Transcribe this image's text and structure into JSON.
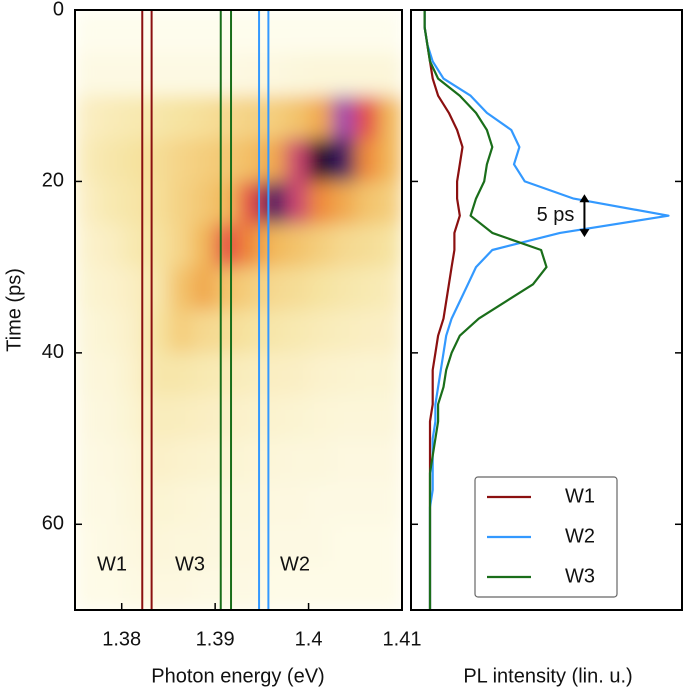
{
  "chart_data": [
    {
      "type": "heatmap",
      "xlabel": "Photon energy (eV)",
      "ylabel": "Time (ps)",
      "xlim": [
        1.375,
        1.41
      ],
      "ylim": [
        0,
        70
      ],
      "y_inverted": true,
      "xticks": [
        1.38,
        1.39,
        1.4,
        1.41
      ],
      "yticks": [
        0,
        20,
        40,
        60
      ],
      "x_bins": [
        1.375,
        1.3775,
        1.38,
        1.3825,
        1.385,
        1.3875,
        1.39,
        1.3925,
        1.395,
        1.3975,
        1.4,
        1.4025,
        1.405,
        1.4075,
        1.41
      ],
      "y_bins": [
        0,
        5,
        10,
        15,
        20,
        25,
        30,
        35,
        40,
        45,
        50,
        55,
        60,
        65,
        70
      ],
      "z": [
        [
          0.02,
          0.02,
          0.02,
          0.02,
          0.02,
          0.02,
          0.02,
          0.02,
          0.02,
          0.02,
          0.02,
          0.02,
          0.02,
          0.02
        ],
        [
          0.05,
          0.05,
          0.05,
          0.05,
          0.05,
          0.05,
          0.05,
          0.06,
          0.06,
          0.07,
          0.08,
          0.08,
          0.08,
          0.08
        ],
        [
          0.15,
          0.18,
          0.2,
          0.22,
          0.25,
          0.27,
          0.3,
          0.33,
          0.35,
          0.4,
          0.5,
          0.8,
          0.7,
          0.45
        ],
        [
          0.18,
          0.22,
          0.25,
          0.28,
          0.32,
          0.35,
          0.38,
          0.42,
          0.5,
          0.75,
          0.95,
          0.9,
          0.6,
          0.45
        ],
        [
          0.15,
          0.2,
          0.23,
          0.27,
          0.33,
          0.38,
          0.45,
          0.7,
          0.9,
          0.75,
          0.6,
          0.5,
          0.4,
          0.35
        ],
        [
          0.12,
          0.15,
          0.2,
          0.25,
          0.32,
          0.45,
          0.7,
          0.6,
          0.45,
          0.4,
          0.35,
          0.3,
          0.28,
          0.25
        ],
        [
          0.1,
          0.12,
          0.15,
          0.22,
          0.4,
          0.5,
          0.4,
          0.35,
          0.3,
          0.28,
          0.25,
          0.22,
          0.2,
          0.18
        ],
        [
          0.08,
          0.1,
          0.13,
          0.25,
          0.35,
          0.3,
          0.28,
          0.25,
          0.22,
          0.2,
          0.18,
          0.16,
          0.15,
          0.14
        ],
        [
          0.07,
          0.08,
          0.12,
          0.22,
          0.22,
          0.2,
          0.18,
          0.16,
          0.15,
          0.14,
          0.12,
          0.11,
          0.1,
          0.1
        ],
        [
          0.06,
          0.07,
          0.1,
          0.17,
          0.16,
          0.15,
          0.13,
          0.12,
          0.11,
          0.1,
          0.09,
          0.08,
          0.08,
          0.08
        ],
        [
          0.05,
          0.06,
          0.08,
          0.13,
          0.12,
          0.11,
          0.1,
          0.09,
          0.08,
          0.07,
          0.07,
          0.06,
          0.06,
          0.06
        ],
        [
          0.05,
          0.05,
          0.07,
          0.1,
          0.09,
          0.08,
          0.07,
          0.07,
          0.06,
          0.06,
          0.05,
          0.05,
          0.05,
          0.05
        ],
        [
          0.04,
          0.05,
          0.06,
          0.08,
          0.07,
          0.07,
          0.06,
          0.06,
          0.05,
          0.05,
          0.05,
          0.04,
          0.04,
          0.04
        ],
        [
          0.04,
          0.04,
          0.05,
          0.06,
          0.06,
          0.05,
          0.05,
          0.05,
          0.04,
          0.04,
          0.04,
          0.04,
          0.04,
          0.04
        ]
      ],
      "colormap": [
        [
          0,
          "#fffff4"
        ],
        [
          0.25,
          "#f6e3a0"
        ],
        [
          0.45,
          "#f2b85a"
        ],
        [
          0.6,
          "#ef8a3a"
        ],
        [
          0.72,
          "#e2454a"
        ],
        [
          0.83,
          "#8a4ad0"
        ],
        [
          0.92,
          "#2a1040"
        ],
        [
          1,
          "#000000"
        ]
      ],
      "windows": [
        {
          "name": "W1",
          "color": "#8b1010",
          "edges": [
            1.3822,
            1.3832
          ]
        },
        {
          "name": "W3",
          "color": "#1a6e1a",
          "edges": [
            1.3906,
            1.3917
          ]
        },
        {
          "name": "W2",
          "color": "#3399ff",
          "edges": [
            1.3947,
            1.3957
          ]
        }
      ]
    },
    {
      "type": "line",
      "orientation": "time-vertical",
      "xlabel": "PL intensity (lin. u.)",
      "xlim": [
        0,
        70
      ],
      "ylim": [
        0,
        1
      ],
      "legend": "lower right",
      "x": [
        0,
        2,
        4,
        6,
        8,
        10,
        12,
        14,
        16,
        18,
        20,
        22,
        24,
        26,
        28,
        30,
        32,
        34,
        36,
        38,
        40,
        42,
        44,
        46,
        48,
        50,
        52,
        54,
        56,
        58,
        60,
        62,
        64,
        66,
        68,
        70
      ],
      "series": [
        {
          "name": "W1",
          "color": "#8b1010",
          "values": [
            0.05,
            0.05,
            0.06,
            0.07,
            0.08,
            0.1,
            0.14,
            0.17,
            0.19,
            0.18,
            0.17,
            0.17,
            0.18,
            0.16,
            0.16,
            0.15,
            0.14,
            0.13,
            0.12,
            0.1,
            0.09,
            0.08,
            0.08,
            0.08,
            0.07,
            0.07,
            0.07,
            0.07,
            0.07,
            0.07,
            0.07,
            0.07,
            0.07,
            0.07,
            0.07,
            0.07
          ]
        },
        {
          "name": "W2",
          "color": "#3399ff",
          "values": [
            0.05,
            0.05,
            0.06,
            0.08,
            0.12,
            0.22,
            0.28,
            0.37,
            0.4,
            0.38,
            0.42,
            0.6,
            0.95,
            0.55,
            0.3,
            0.24,
            0.21,
            0.18,
            0.15,
            0.13,
            0.12,
            0.11,
            0.1,
            0.09,
            0.09,
            0.08,
            0.08,
            0.08,
            0.08,
            0.07,
            0.07,
            0.07,
            0.07,
            0.07,
            0.07,
            0.07
          ]
        },
        {
          "name": "W3",
          "color": "#1a6e1a",
          "values": [
            0.05,
            0.05,
            0.06,
            0.07,
            0.1,
            0.18,
            0.24,
            0.28,
            0.3,
            0.28,
            0.27,
            0.24,
            0.22,
            0.3,
            0.48,
            0.5,
            0.45,
            0.35,
            0.25,
            0.18,
            0.15,
            0.13,
            0.12,
            0.1,
            0.1,
            0.09,
            0.08,
            0.07,
            0.07,
            0.07,
            0.07,
            0.07,
            0.07,
            0.07,
            0.07,
            0.07
          ]
        }
      ],
      "annotation": {
        "text": "5 ps",
        "span": [
          21.5,
          26.5
        ],
        "at": 0.64
      }
    }
  ]
}
